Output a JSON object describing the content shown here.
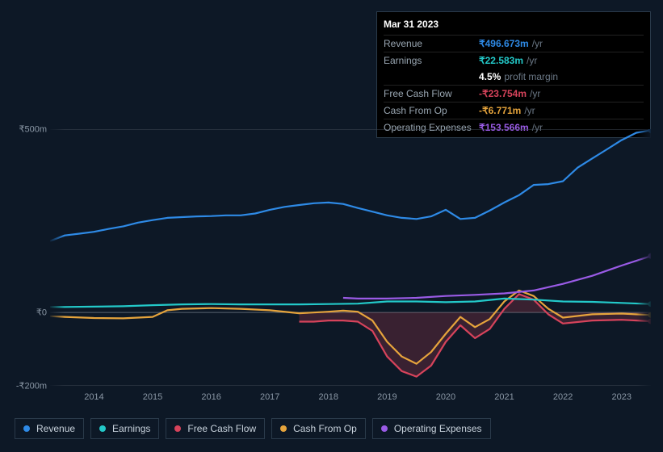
{
  "tooltip": {
    "date": "Mar 31 2023",
    "rows": [
      {
        "label": "Revenue",
        "value": "₹496.673m",
        "unit": "/yr",
        "color": "#2e8ae6"
      },
      {
        "label": "Earnings",
        "value": "₹22.583m",
        "unit": "/yr",
        "color": "#23c9c9",
        "sub_value": "4.5%",
        "sub_label": "profit margin"
      },
      {
        "label": "Free Cash Flow",
        "value": "-₹23.754m",
        "unit": "/yr",
        "color": "#d6435b"
      },
      {
        "label": "Cash From Op",
        "value": "-₹6.771m",
        "unit": "/yr",
        "color": "#e6a43c"
      },
      {
        "label": "Operating Expenses",
        "value": "₹153.566m",
        "unit": "/yr",
        "color": "#9a5be6"
      }
    ]
  },
  "chart": {
    "type": "line",
    "background_color": "#0d1826",
    "grid_color": "#404854",
    "zero_line_color": "#5a6470",
    "label_color": "#8a97a5",
    "label_fontsize": 11,
    "x_range": [
      2013.25,
      2023.5
    ],
    "x_ticks": [
      2014,
      2015,
      2016,
      2017,
      2018,
      2019,
      2020,
      2021,
      2022,
      2023
    ],
    "x_tick_labels": [
      "2014",
      "2015",
      "2016",
      "2017",
      "2018",
      "2019",
      "2020",
      "2021",
      "2022",
      "2023"
    ],
    "y_range": [
      -200,
      500
    ],
    "y_ticks": [
      -200,
      0,
      500
    ],
    "y_tick_labels": [
      "-₹200m",
      "₹0",
      "₹500m"
    ],
    "edge_fade_color": "#0d1826",
    "series": [
      {
        "name": "Revenue",
        "color": "#2e8ae6",
        "line_width": 2.2,
        "data": [
          [
            2013.25,
            195
          ],
          [
            2013.5,
            210
          ],
          [
            2013.75,
            215
          ],
          [
            2014.0,
            220
          ],
          [
            2014.25,
            228
          ],
          [
            2014.5,
            235
          ],
          [
            2014.75,
            245
          ],
          [
            2015.0,
            252
          ],
          [
            2015.25,
            258
          ],
          [
            2015.5,
            260
          ],
          [
            2015.75,
            262
          ],
          [
            2016.0,
            263
          ],
          [
            2016.25,
            265
          ],
          [
            2016.5,
            265
          ],
          [
            2016.75,
            270
          ],
          [
            2017.0,
            280
          ],
          [
            2017.25,
            288
          ],
          [
            2017.5,
            293
          ],
          [
            2017.75,
            298
          ],
          [
            2018.0,
            300
          ],
          [
            2018.25,
            296
          ],
          [
            2018.5,
            285
          ],
          [
            2018.75,
            275
          ],
          [
            2019.0,
            265
          ],
          [
            2019.25,
            258
          ],
          [
            2019.5,
            255
          ],
          [
            2019.75,
            262
          ],
          [
            2020.0,
            280
          ],
          [
            2020.25,
            255
          ],
          [
            2020.5,
            258
          ],
          [
            2020.75,
            278
          ],
          [
            2021.0,
            300
          ],
          [
            2021.25,
            320
          ],
          [
            2021.5,
            348
          ],
          [
            2021.75,
            350
          ],
          [
            2022.0,
            358
          ],
          [
            2022.25,
            395
          ],
          [
            2022.5,
            420
          ],
          [
            2022.75,
            445
          ],
          [
            2023.0,
            470
          ],
          [
            2023.25,
            490
          ],
          [
            2023.5,
            497
          ]
        ]
      },
      {
        "name": "Earnings",
        "color": "#23c9c9",
        "line_width": 2.2,
        "data": [
          [
            2013.25,
            15
          ],
          [
            2013.5,
            15
          ],
          [
            2014.0,
            16
          ],
          [
            2014.5,
            17
          ],
          [
            2015.0,
            20
          ],
          [
            2015.5,
            22
          ],
          [
            2016.0,
            23
          ],
          [
            2016.5,
            22
          ],
          [
            2017.0,
            22
          ],
          [
            2017.5,
            22
          ],
          [
            2018.0,
            23
          ],
          [
            2018.5,
            24
          ],
          [
            2019.0,
            30
          ],
          [
            2019.5,
            30
          ],
          [
            2020.0,
            28
          ],
          [
            2020.5,
            30
          ],
          [
            2021.0,
            38
          ],
          [
            2021.5,
            35
          ],
          [
            2022.0,
            30
          ],
          [
            2022.5,
            29
          ],
          [
            2023.0,
            26
          ],
          [
            2023.5,
            23
          ]
        ]
      },
      {
        "name": "Free Cash Flow",
        "color": "#d6435b",
        "line_width": 2.2,
        "fill": true,
        "fill_opacity": 0.22,
        "data": [
          [
            2017.5,
            -25
          ],
          [
            2017.75,
            -25
          ],
          [
            2018.0,
            -22
          ],
          [
            2018.25,
            -22
          ],
          [
            2018.5,
            -25
          ],
          [
            2018.75,
            -50
          ],
          [
            2019.0,
            -120
          ],
          [
            2019.25,
            -160
          ],
          [
            2019.5,
            -175
          ],
          [
            2019.75,
            -145
          ],
          [
            2020.0,
            -80
          ],
          [
            2020.25,
            -35
          ],
          [
            2020.5,
            -70
          ],
          [
            2020.75,
            -45
          ],
          [
            2021.0,
            10
          ],
          [
            2021.25,
            50
          ],
          [
            2021.5,
            35
          ],
          [
            2021.75,
            -5
          ],
          [
            2022.0,
            -30
          ],
          [
            2022.5,
            -22
          ],
          [
            2023.0,
            -20
          ],
          [
            2023.5,
            -24
          ]
        ]
      },
      {
        "name": "Cash From Op",
        "color": "#e6a43c",
        "line_width": 2.2,
        "data": [
          [
            2013.25,
            -10
          ],
          [
            2013.5,
            -12
          ],
          [
            2014.0,
            -15
          ],
          [
            2014.5,
            -16
          ],
          [
            2015.0,
            -12
          ],
          [
            2015.25,
            6
          ],
          [
            2015.5,
            10
          ],
          [
            2016.0,
            12
          ],
          [
            2016.5,
            10
          ],
          [
            2017.0,
            6
          ],
          [
            2017.5,
            -2
          ],
          [
            2018.0,
            2
          ],
          [
            2018.25,
            5
          ],
          [
            2018.5,
            2
          ],
          [
            2018.75,
            -22
          ],
          [
            2019.0,
            -80
          ],
          [
            2019.25,
            -120
          ],
          [
            2019.5,
            -140
          ],
          [
            2019.75,
            -108
          ],
          [
            2020.0,
            -58
          ],
          [
            2020.25,
            -12
          ],
          [
            2020.5,
            -40
          ],
          [
            2020.75,
            -18
          ],
          [
            2021.0,
            30
          ],
          [
            2021.25,
            60
          ],
          [
            2021.5,
            45
          ],
          [
            2021.75,
            10
          ],
          [
            2022.0,
            -14
          ],
          [
            2022.5,
            -5
          ],
          [
            2023.0,
            -3
          ],
          [
            2023.5,
            -7
          ]
        ]
      },
      {
        "name": "Operating Expenses",
        "color": "#9a5be6",
        "line_width": 2.2,
        "data": [
          [
            2018.25,
            40
          ],
          [
            2018.5,
            38
          ],
          [
            2019.0,
            38
          ],
          [
            2019.5,
            40
          ],
          [
            2020.0,
            45
          ],
          [
            2020.5,
            48
          ],
          [
            2021.0,
            52
          ],
          [
            2021.5,
            60
          ],
          [
            2022.0,
            78
          ],
          [
            2022.5,
            100
          ],
          [
            2023.0,
            128
          ],
          [
            2023.5,
            154
          ]
        ]
      }
    ],
    "legend": {
      "border_color": "#2a3a4a",
      "text_color": "#c8d2dc",
      "fontsize": 12,
      "items": [
        {
          "label": "Revenue",
          "color": "#2e8ae6"
        },
        {
          "label": "Earnings",
          "color": "#23c9c9"
        },
        {
          "label": "Free Cash Flow",
          "color": "#d6435b"
        },
        {
          "label": "Cash From Op",
          "color": "#e6a43c"
        },
        {
          "label": "Operating Expenses",
          "color": "#9a5be6"
        }
      ]
    }
  }
}
